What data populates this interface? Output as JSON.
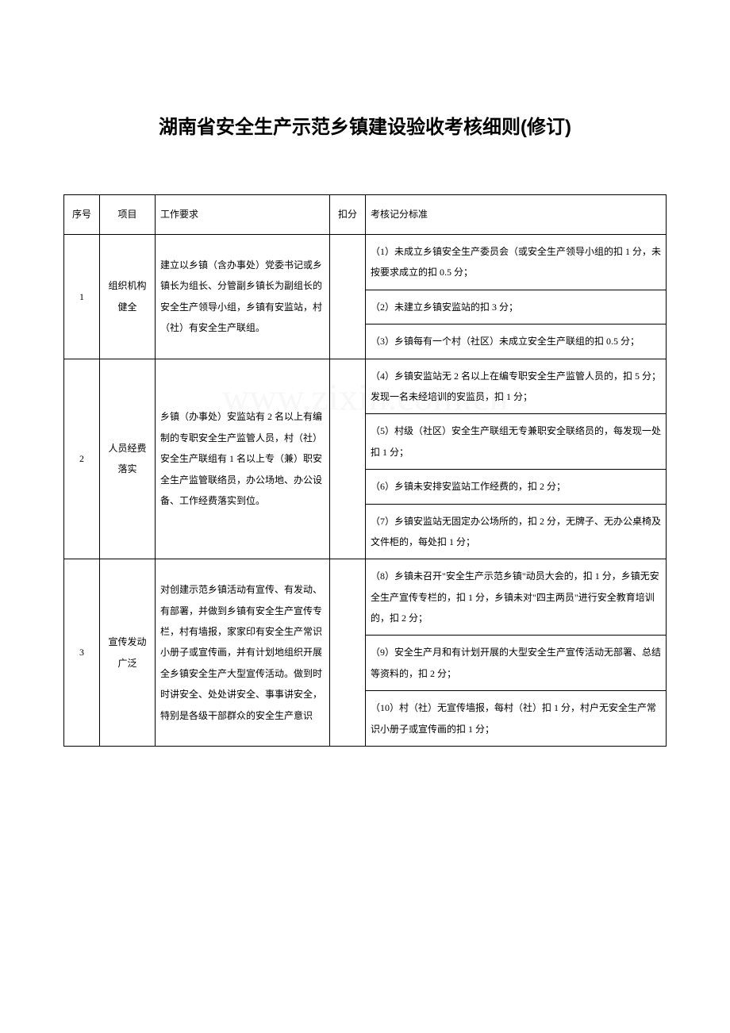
{
  "title": "湖南省安全生产示范乡镇建设验收考核细则(修订)",
  "watermark": "www.zixin.com.cn",
  "table": {
    "headers": {
      "seq": "序号",
      "item": "项目",
      "requirement": "工作要求",
      "deduct": "扣分",
      "standard": "考核记分标准"
    },
    "rows": [
      {
        "seq": "1",
        "item": "组织机构健全",
        "requirement": "建立以乡镇（含办事处）党委书记或乡镇长为组长、分管副乡镇长为副组长的安全生产领导小组，乡镇有安监站，村（社）有安全生产联组。",
        "standards": [
          "（1）未成立乡镇安全生产委员会（或安全生产领导小组的扣 1 分，未按要求成立的扣 0.5 分；",
          "（2）未建立乡镇安监站的扣 3 分；",
          "（3）乡镇每有一个村（社区）未成立安全生产联组的扣 0.5 分；"
        ]
      },
      {
        "seq": "2",
        "item": "人员经费落实",
        "requirement": "乡镇（办事处）安监站有 2 名以上有编制的专职安全生产监管人员，村（社）安全生产联组有 1 名以上专（兼）职安全生产监管联络员，办公场地、办公设备、工作经费落实到位。",
        "standards": [
          "（4）乡镇安监站无 2 名以上在编专职安全生产监管人员的，扣 5 分；发现一名未经培训的安监员，扣 1 分；",
          "（5）村级（社区）安全生产联组无专兼职安全联络员的，每发现一处扣 1 分；",
          "（6）乡镇未安排安监站工作经费的，扣 2 分；",
          "（7）乡镇安监站无固定办公场所的，扣 2 分，无牌子、无办公桌椅及文件柜的，每处扣 1 分；"
        ]
      },
      {
        "seq": "3",
        "item": "宣传发动广泛",
        "requirement": "对创建示范乡镇活动有宣传、有发动、有部署，并做到乡镇有安全生产宣传专栏，村有墙报，家家印有安全生产常识小册子或宣传画，并有计划地组织开展全乡镇安全生产大型宣传活动。做到时时讲安全、处处讲安全、事事讲安全，特别是各级干部群众的安全生产意识",
        "standards": [
          "（8）乡镇未召开\"安全生产示范乡镇\"动员大会的，扣 1 分，乡镇无安全生产宣传专栏的，扣 1 分，乡镇未对\"四主两员\"进行安全教育培训的，扣 2 分；",
          "（9）安全生产月和有计划开展的大型安全生产宣传活动无部署、总结等资料的，扣 2 分；",
          "（10）村（社）无宣传墙报，每村（社）扣 1 分，村户无安全生产常识小册子或宣传画的扣 1 分；"
        ]
      }
    ]
  }
}
